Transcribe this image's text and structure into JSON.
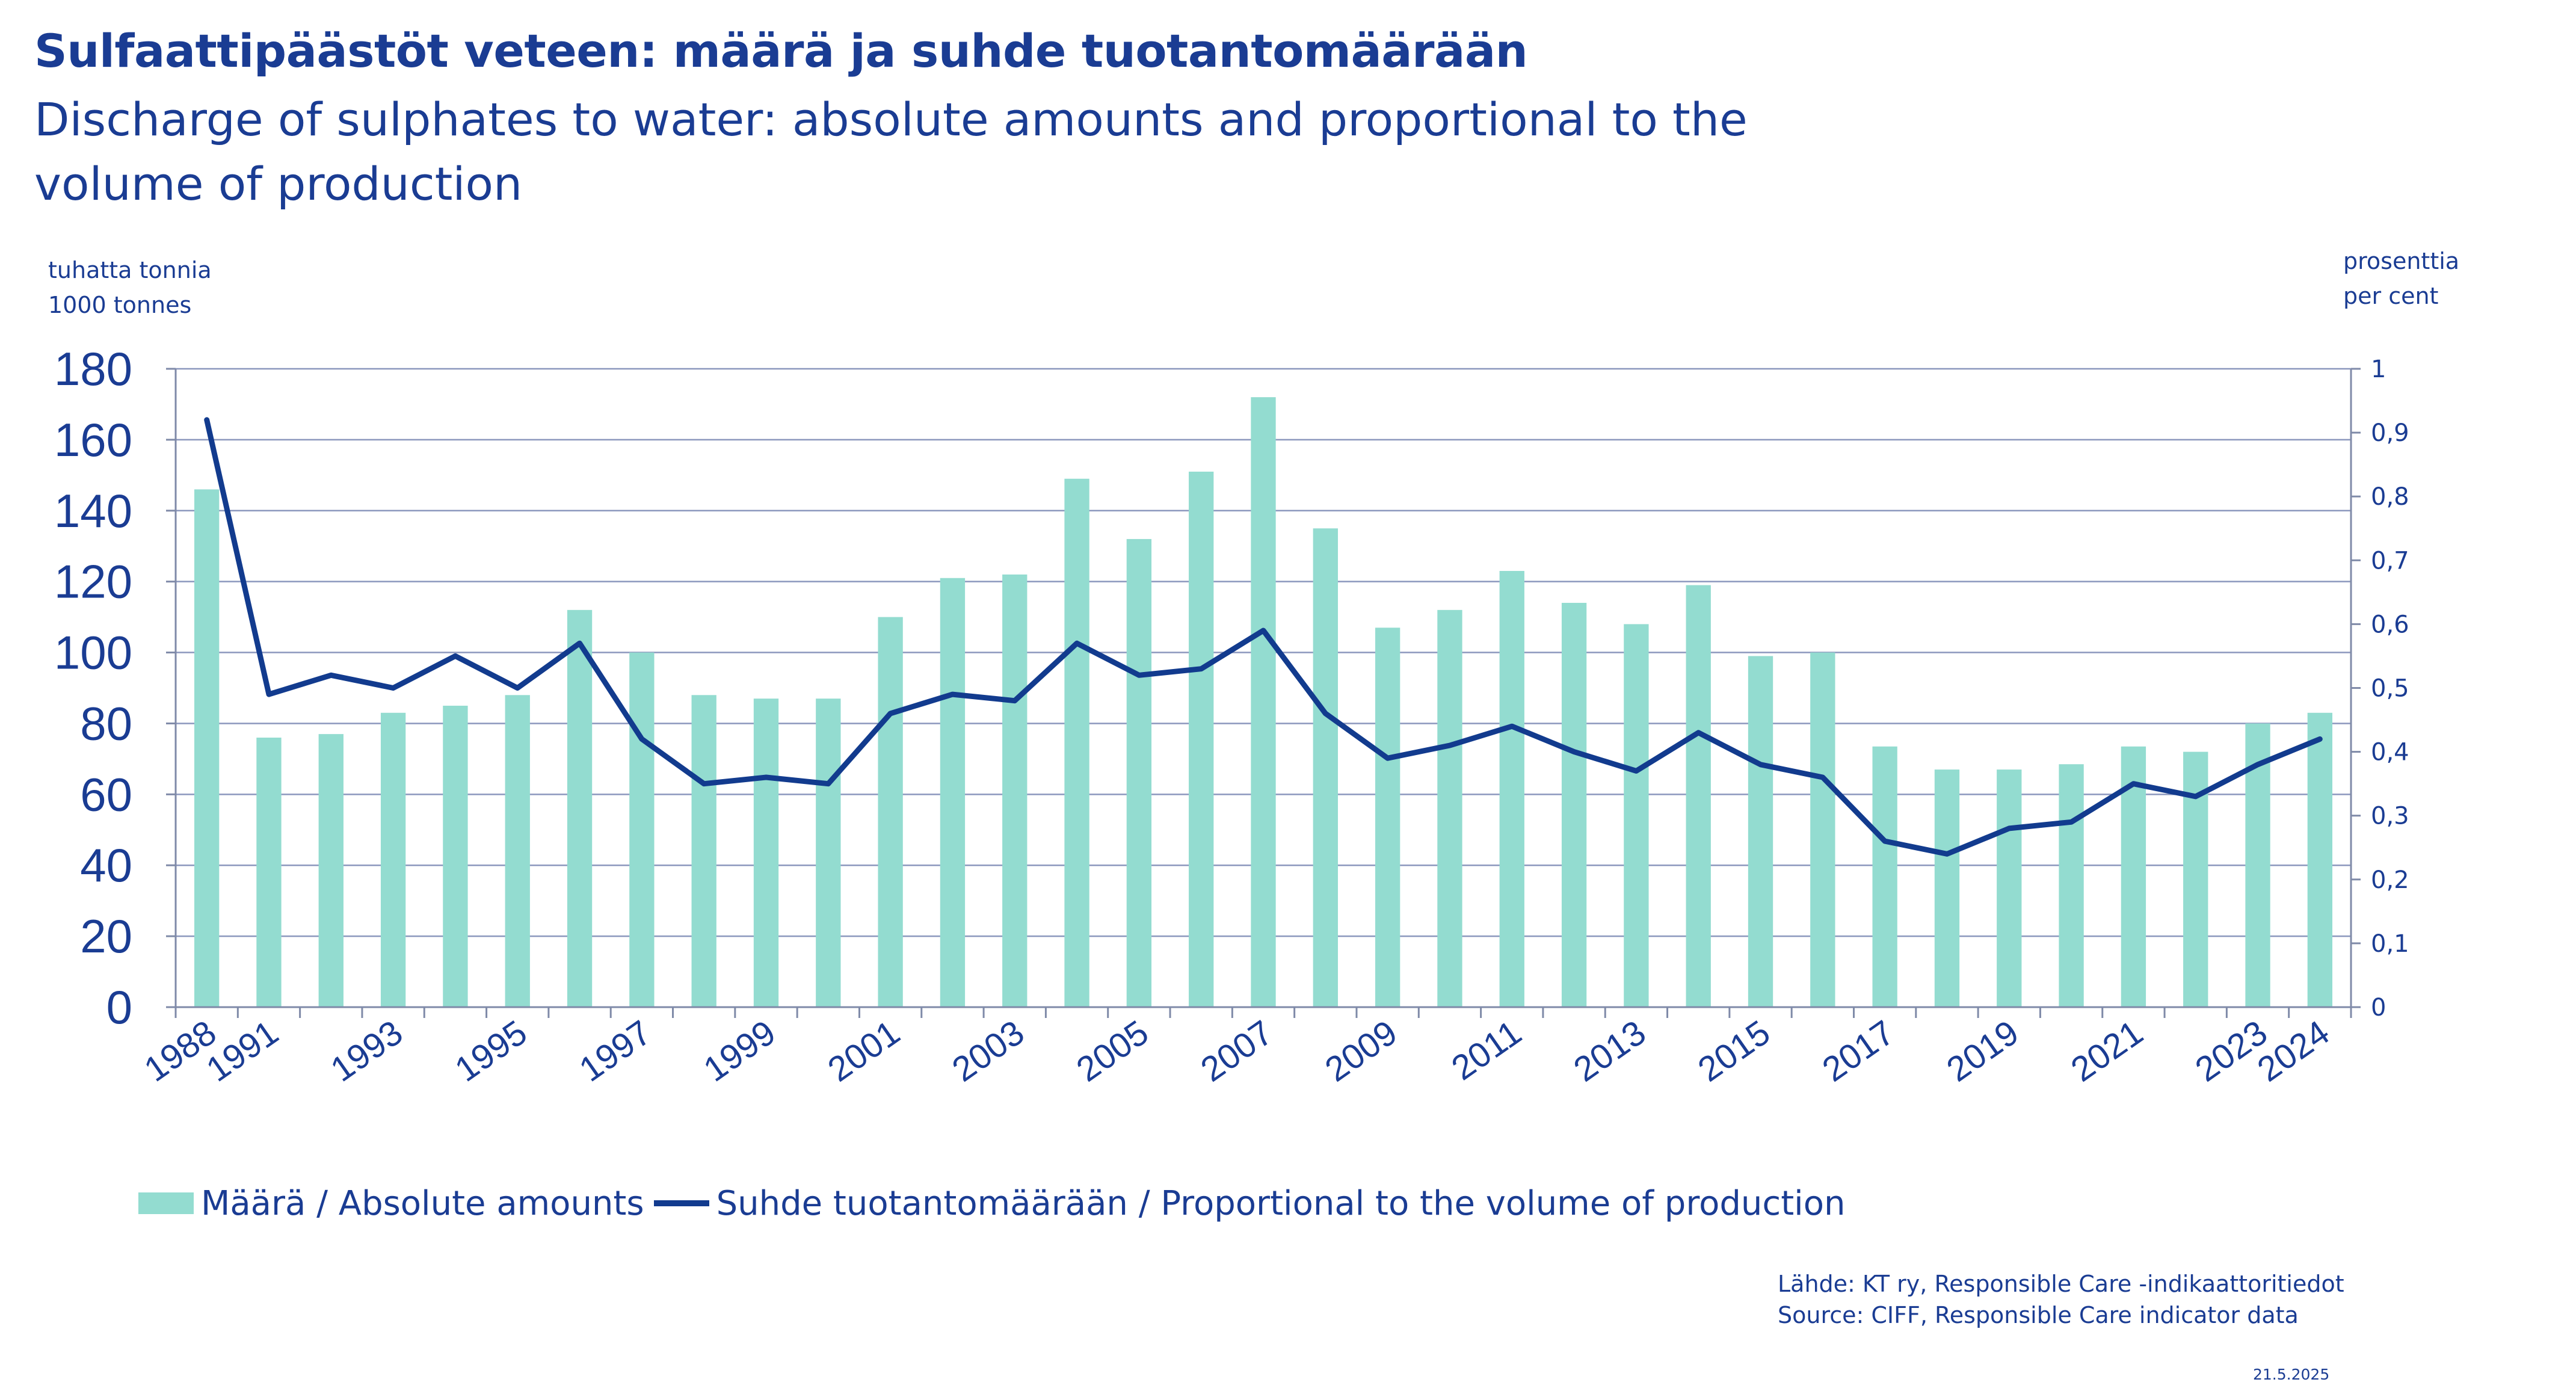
{
  "title": "Sulfaattipäästöt veteen: määrä ja suhde tuotantomäärään",
  "subtitle": "Discharge of sulphates to water: absolute amounts and proportional to the volume of production",
  "left_unit": [
    "tuhatta tonnia",
    "1000 tonnes"
  ],
  "right_unit": [
    "prosenttia",
    "per cent"
  ],
  "legend": {
    "bar_label": "Määrä / Absolute amounts",
    "line_label": "Suhde tuotantomäärään / Proportional to the volume of production"
  },
  "source": [
    "Lähde: KT ry, Responsible Care -indikaattoritiedot",
    "Source: CIFF, Responsible Care indicator data"
  ],
  "date": "21.5.2025",
  "colors": {
    "bar": "#93dcd0",
    "line": "#123b8e",
    "text": "#1a3c93",
    "grid": "#8b97bd",
    "axis": "#7f8aa8"
  },
  "chart_data": {
    "type": "bar",
    "categories": [
      "1988",
      "1991",
      "1992",
      "1993",
      "1994",
      "1995",
      "1996",
      "1997",
      "1998",
      "1999",
      "2000",
      "2001",
      "2002",
      "2003",
      "2004",
      "2005",
      "2006",
      "2007",
      "2008",
      "2009",
      "2010",
      "2011",
      "2012",
      "2013",
      "2014",
      "2015",
      "2016",
      "2017",
      "2018",
      "2019",
      "2020",
      "2021",
      "2022",
      "2023",
      "2024"
    ],
    "tick_labels": [
      "1988",
      "1991",
      "",
      "1993",
      "",
      "1995",
      "",
      "1997",
      "",
      "1999",
      "",
      "2001",
      "",
      "2003",
      "",
      "2005",
      "",
      "2007",
      "",
      "2009",
      "",
      "2011",
      "",
      "2013",
      "",
      "2015",
      "",
      "2017",
      "",
      "2019",
      "",
      "2021",
      "",
      "2023",
      "2024"
    ],
    "series": [
      {
        "name": "Määrä / Absolute amounts",
        "type": "bar",
        "axis": "left",
        "values": [
          146,
          76,
          77,
          83,
          85,
          88,
          112,
          100,
          88,
          87,
          87,
          110,
          121,
          122,
          149,
          132,
          151,
          172,
          135,
          107,
          112,
          123,
          114,
          108,
          119,
          99,
          100,
          73.5,
          67,
          67,
          68.5,
          73.5,
          72,
          80,
          83
        ]
      },
      {
        "name": "Suhde tuotantomäärään / Proportional to the volume of production",
        "type": "line",
        "axis": "right",
        "values": [
          0.92,
          0.49,
          0.52,
          0.5,
          0.55,
          0.5,
          0.57,
          0.42,
          0.35,
          0.36,
          0.35,
          0.46,
          0.49,
          0.48,
          0.57,
          0.52,
          0.53,
          0.59,
          0.46,
          0.39,
          0.41,
          0.44,
          0.4,
          0.37,
          0.43,
          0.38,
          0.36,
          0.26,
          0.24,
          0.28,
          0.29,
          0.35,
          0.33,
          0.38,
          0.42
        ]
      }
    ],
    "y_left": {
      "lim": [
        0,
        180
      ],
      "ticks": [
        0,
        20,
        40,
        60,
        80,
        100,
        120,
        140,
        160,
        180
      ],
      "tick_labels": [
        "0",
        "20",
        "40",
        "60",
        "80",
        "100",
        "120",
        "140",
        "160",
        "180"
      ]
    },
    "y_right": {
      "lim": [
        0,
        1
      ],
      "ticks": [
        0,
        0.1,
        0.2,
        0.3,
        0.4,
        0.5,
        0.6,
        0.7,
        0.8,
        0.9,
        1
      ],
      "tick_labels": [
        "0",
        "0,1",
        "0,2",
        "0,3",
        "0,4",
        "0,5",
        "0,6",
        "0,7",
        "0,8",
        "0,9",
        "1"
      ]
    },
    "grid": true,
    "legend_position": "bottom"
  }
}
